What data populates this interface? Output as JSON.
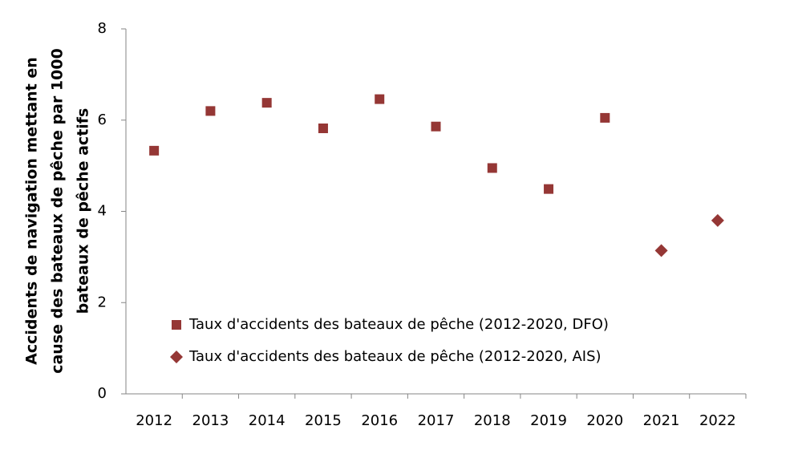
{
  "chart_data": {
    "type": "scatter",
    "ylabel": [
      "Accidents de navigation mettant en",
      "cause des bateaux de pêche par 1000",
      "bateaux de pêche actifs"
    ],
    "categories": [
      "2012",
      "2013",
      "2014",
      "2015",
      "2016",
      "2017",
      "2018",
      "2019",
      "2020",
      "2021",
      "2022"
    ],
    "series": [
      {
        "name": "Taux d'accidents des bateaux de pêche (2012-2020, DFO)",
        "color": "#953735",
        "marker": "square",
        "values": [
          5.33,
          6.2,
          6.38,
          5.82,
          6.46,
          5.86,
          4.95,
          4.49,
          6.05,
          null,
          null
        ]
      },
      {
        "name": "Taux d'accidents des bateaux de pêche (2012-2020, AIS)",
        "color": "#953735",
        "marker": "diamond",
        "values": [
          null,
          null,
          null,
          null,
          null,
          null,
          null,
          null,
          null,
          3.14,
          3.8
        ]
      }
    ],
    "ylim": [
      0,
      8
    ],
    "yticks": [
      0,
      2,
      4,
      6,
      8
    ],
    "grid": false,
    "legend": "bottom-left"
  }
}
